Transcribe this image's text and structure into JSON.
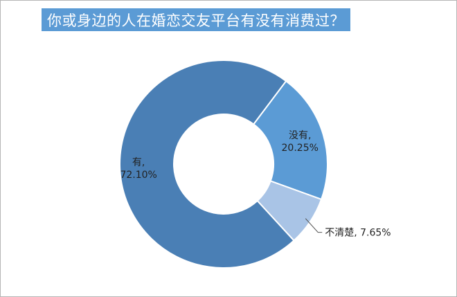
{
  "title": "你或身边的人在婚恋交友平台有没有消费过？",
  "chart_data": {
    "type": "pie",
    "variant": "donut",
    "title": "你或身边的人在婚恋交友平台有没有消费过？",
    "slices": [
      {
        "label": "有",
        "value": 72.1,
        "display": "72.10%",
        "color": "#4a7fb5"
      },
      {
        "label": "没有",
        "value": 20.25,
        "display": "20.25%",
        "color": "#5b9bd5"
      },
      {
        "label": "不清楚",
        "value": 7.65,
        "display": "7.65%",
        "color": "#a9c4e6"
      }
    ]
  }
}
